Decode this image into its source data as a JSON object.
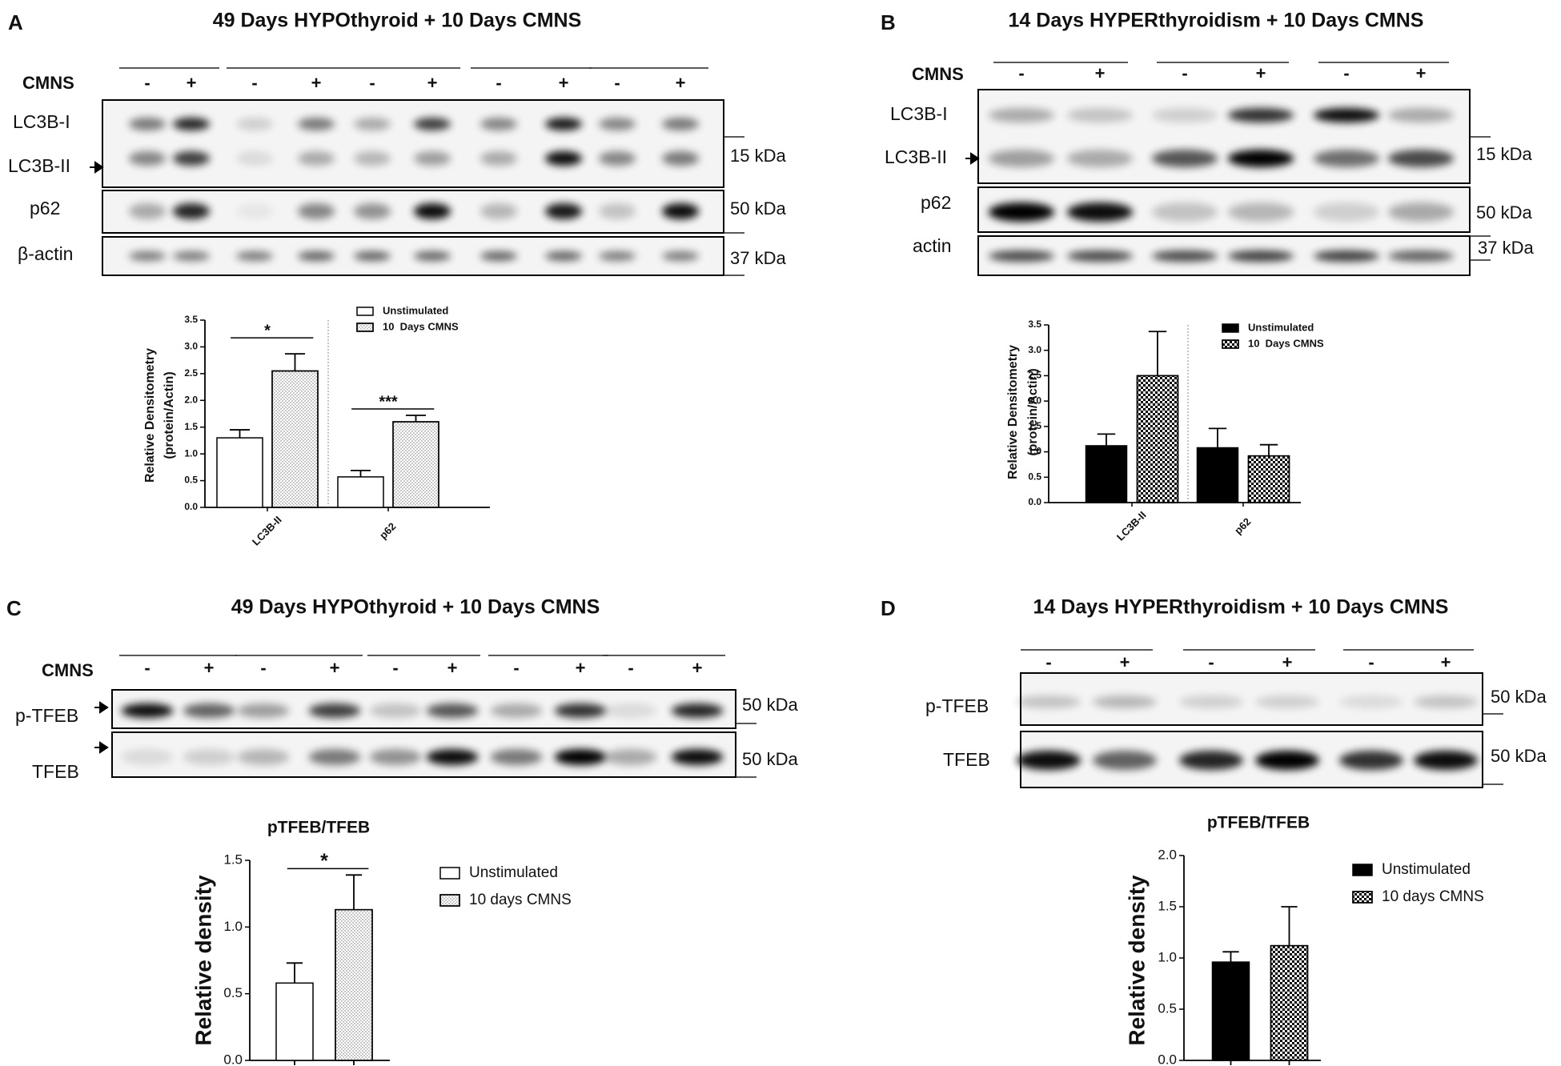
{
  "panels": [
    {
      "letter": "A",
      "title": "49 Days HYPOthyroid + 10 Days CMNS",
      "treatment": "CMNS",
      "lanes": [
        "-",
        "+",
        "-",
        "+",
        "-",
        "+",
        "-",
        "+",
        "-",
        "+"
      ],
      "bands": [
        "LC3B-I",
        "LC3B-II",
        "p62",
        "β-actin"
      ],
      "markers": [
        "15 kDa",
        "50 kDa",
        "37 kDa"
      ]
    },
    {
      "letter": "B",
      "title": "14 Days HYPERthyroidism + 10 Days CMNS",
      "treatment": "CMNS",
      "lanes": [
        "-",
        "+",
        "-",
        "+",
        "-",
        "+"
      ],
      "bands": [
        "LC3B-I",
        "LC3B-II",
        "p62",
        "actin"
      ],
      "markers": [
        "15 kDa",
        "50 kDa",
        "37 kDa"
      ]
    },
    {
      "letter": "C",
      "title": "49 Days HYPOthyroid + 10 Days CMNS",
      "treatment": "CMNS",
      "lanes": [
        "-",
        "+",
        "-",
        "+",
        "-",
        "+",
        "-",
        "+",
        "-",
        "+"
      ],
      "bands": [
        "p-TFEB",
        "TFEB"
      ],
      "markers": [
        "50 kDa",
        "50 kDa"
      ]
    },
    {
      "letter": "D",
      "title": "14 Days HYPERthyroidism + 10 Days CMNS",
      "lanes": [
        "-",
        "+",
        "-",
        "+",
        "-",
        "+"
      ],
      "bands": [
        "p-TFEB",
        "TFEB"
      ],
      "markers": [
        "50 kDa",
        "50 kDa"
      ]
    }
  ],
  "chart_data": [
    {
      "type": "bar",
      "ylabel": [
        "Relative Densitometry",
        "(protein/Actin)"
      ],
      "categories": [
        "LC3B-II",
        "p62"
      ],
      "series": [
        {
          "name": "Unstimulated",
          "color": "#ffffff",
          "pattern": "none",
          "values": [
            1.3,
            0.57
          ],
          "errors": [
            0.15,
            0.12
          ]
        },
        {
          "name": "10  Days CMNS",
          "color": "#ffffff",
          "pattern": "dots",
          "values": [
            2.55,
            1.6
          ],
          "errors": [
            0.32,
            0.12
          ]
        }
      ],
      "ylim": [
        0,
        3.5
      ],
      "yticks": [
        {
          "value": 0,
          "label": "0.0"
        },
        {
          "value": 0.5,
          "label": "0.5"
        },
        {
          "value": 1,
          "label": "1.0"
        },
        {
          "value": 1.5,
          "label": "1.5"
        },
        {
          "value": 2,
          "label": "2.0"
        },
        {
          "value": 2.5,
          "label": "2.5"
        },
        {
          "value": 3,
          "label": "3.0"
        },
        {
          "value": 3.5,
          "label": "3.5"
        }
      ],
      "annotations": [
        {
          "text": "*",
          "category": 0
        },
        {
          "text": "***",
          "category": 1
        }
      ]
    },
    {
      "type": "bar",
      "ylabel": [
        "Relative Densitometry",
        "(protein/Actin)"
      ],
      "categories": [
        "LC3B-II",
        "p62"
      ],
      "series": [
        {
          "name": "Unstimulated",
          "color": "#000000",
          "pattern": "none",
          "values": [
            1.12,
            1.08
          ],
          "errors": [
            0.23,
            0.38
          ]
        },
        {
          "name": "10  Days CMNS",
          "color": "#ffffff",
          "pattern": "checker",
          "values": [
            2.5,
            0.92
          ],
          "errors": [
            0.87,
            0.22
          ]
        }
      ],
      "ylim": [
        0,
        3.5
      ],
      "yticks": [
        {
          "value": 0,
          "label": "0.0"
        },
        {
          "value": 0.5,
          "label": "0.5"
        },
        {
          "value": 1,
          "label": "1.0"
        },
        {
          "value": 1.5,
          "label": "1.5"
        },
        {
          "value": 2,
          "label": "2.0"
        },
        {
          "value": 2.5,
          "label": "2.5"
        },
        {
          "value": 3,
          "label": "3.0"
        },
        {
          "value": 3.5,
          "label": "3.5"
        }
      ]
    },
    {
      "type": "bar",
      "title": "pTFEB/TFEB",
      "ylabel": [
        "Relative density"
      ],
      "categories": [
        null
      ],
      "series": [
        {
          "name": "Unstimulated",
          "color": "#ffffff",
          "pattern": "none",
          "values": [
            0.58
          ],
          "errors": [
            0.15
          ]
        },
        {
          "name": "10 days CMNS",
          "color": "#ffffff",
          "pattern": "dots",
          "values": [
            1.13
          ],
          "errors": [
            0.26
          ]
        }
      ],
      "ylim": [
        0,
        1.5
      ],
      "yticks": [
        {
          "value": 0,
          "label": "0.0"
        },
        {
          "value": 0.5,
          "label": "0.5"
        },
        {
          "value": 1,
          "label": "1.0"
        },
        {
          "value": 1.5,
          "label": "1.5"
        }
      ],
      "annotations": [
        {
          "text": "*",
          "category": 0
        }
      ]
    },
    {
      "type": "bar",
      "title": "pTFEB/TFEB",
      "ylabel": [
        "Relative density"
      ],
      "categories": [
        null
      ],
      "series": [
        {
          "name": "Unstimulated",
          "color": "#000000",
          "pattern": "none",
          "values": [
            0.96
          ],
          "errors": [
            0.1
          ]
        },
        {
          "name": "10 days CMNS",
          "color": "#ffffff",
          "pattern": "checker",
          "values": [
            1.12
          ],
          "errors": [
            0.38
          ]
        }
      ],
      "ylim": [
        0,
        2
      ],
      "yticks": [
        {
          "value": 0,
          "label": "0.0"
        },
        {
          "value": 0.5,
          "label": "0.5"
        },
        {
          "value": 1,
          "label": "1.0"
        },
        {
          "value": 1.5,
          "label": "1.5"
        },
        {
          "value": 2,
          "label": "2.0"
        }
      ]
    }
  ]
}
